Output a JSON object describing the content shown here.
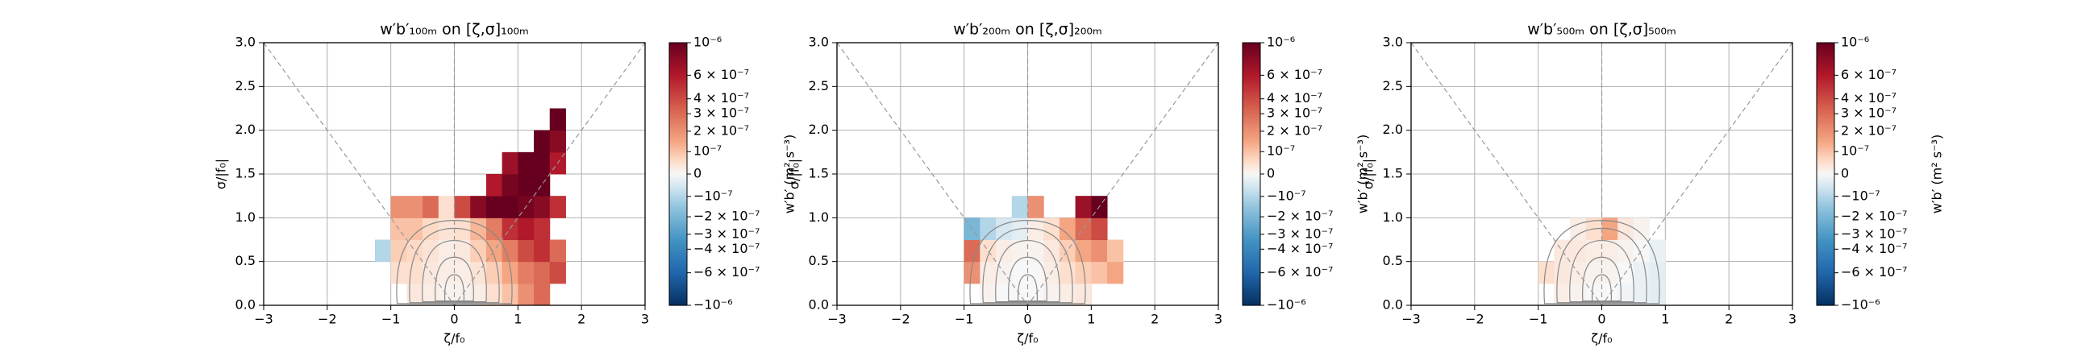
{
  "chart_data": [
    {
      "type": "heatmap",
      "title": "w′b′₁₀₀ₘ on [ζ,σ]₁₀₀ₘ",
      "xlabel": "ζ/f₀",
      "ylabel": "σ/|f₀|",
      "xlim": [
        -3,
        3
      ],
      "ylim": [
        0,
        3
      ],
      "xticks": [
        {
          "value": -3,
          "label": "−3"
        },
        {
          "value": -2,
          "label": "−2"
        },
        {
          "value": -1,
          "label": "−1"
        },
        0,
        1,
        2,
        3
      ],
      "yticks": [
        {
          "value": 0,
          "label": "0.0"
        },
        {
          "value": 0.5,
          "label": "0.5"
        },
        {
          "value": 1,
          "label": "1.0"
        },
        {
          "value": 1.5,
          "label": "1.5"
        },
        {
          "value": 2,
          "label": "2.0"
        },
        {
          "value": 2.5,
          "label": "2.5"
        },
        {
          "value": 3,
          "label": "3.0"
        }
      ],
      "grid": true,
      "x_edges": [
        -1.25,
        -1,
        -0.75,
        -0.5,
        -0.25,
        0,
        0.25,
        0.5,
        0.75,
        1,
        1.25,
        1.5,
        1.75,
        2
      ],
      "y_edges": [
        0,
        0.25,
        0.5,
        0.75,
        1,
        1.25,
        1.5,
        1.75,
        2,
        2.25
      ],
      "z": [
        [
          null,
          null,
          3e-08,
          2e-08,
          1e-08,
          1e-08,
          2e-08,
          5e-08,
          1e-07,
          2e-07,
          3e-07,
          null,
          null
        ],
        [
          null,
          5e-08,
          5e-08,
          3e-08,
          2e-08,
          2e-08,
          4e-08,
          8e-08,
          1.5e-07,
          2.5e-07,
          3e-07,
          4e-07,
          null
        ],
        [
          -1e-07,
          8e-08,
          6e-08,
          4e-08,
          2e-08,
          3e-08,
          8e-08,
          1.5e-07,
          2.5e-07,
          4e-07,
          5e-07,
          3e-07,
          null
        ],
        [
          null,
          1e-07,
          1e-07,
          6e-08,
          4e-08,
          5e-08,
          1.2e-07,
          2.5e-07,
          5e-07,
          6e-07,
          5e-07,
          null,
          null
        ],
        [
          null,
          2e-07,
          2e-07,
          3e-07,
          5e-08,
          4e-07,
          8e-07,
          1e-06,
          1e-06,
          9e-07,
          8e-07,
          5e-07,
          null
        ],
        [
          null,
          null,
          null,
          null,
          null,
          null,
          null,
          6e-07,
          9e-07,
          1e-06,
          1e-06,
          null,
          null
        ],
        [
          null,
          null,
          null,
          null,
          null,
          null,
          null,
          null,
          7e-07,
          1e-06,
          1e-06,
          6e-07,
          null
        ],
        [
          null,
          null,
          null,
          null,
          null,
          null,
          null,
          null,
          null,
          null,
          1e-06,
          8e-07,
          null
        ],
        [
          null,
          null,
          null,
          null,
          null,
          null,
          null,
          null,
          null,
          null,
          null,
          1e-06,
          null
        ]
      ],
      "colorbar": {
        "label": "w′b′ (m² s⁻³)",
        "cmap": "RdBu_r",
        "norm": "asinh",
        "lim": [
          -1e-06,
          1e-06
        ],
        "ticks": [
          {
            "value": 1e-06,
            "label": "10⁻⁶"
          },
          {
            "value": 6e-07,
            "label": "6 × 10⁻⁷"
          },
          {
            "value": 4e-07,
            "label": "4 × 10⁻⁷"
          },
          {
            "value": 3e-07,
            "label": "3 × 10⁻⁷"
          },
          {
            "value": 2e-07,
            "label": "2 × 10⁻⁷"
          },
          {
            "value": 1e-07,
            "label": "10⁻⁷"
          },
          0,
          {
            "value": -1e-07,
            "label": "−10⁻⁷"
          },
          {
            "value": -2e-07,
            "label": "−2 × 10⁻⁷"
          },
          {
            "value": -3e-07,
            "label": "−3 × 10⁻⁷"
          },
          {
            "value": -4e-07,
            "label": "−4 × 10⁻⁷"
          },
          {
            "value": -6e-07,
            "label": "−6 × 10⁻⁷"
          },
          {
            "value": -1e-06,
            "label": "−10⁻⁶"
          }
        ]
      }
    },
    {
      "type": "heatmap",
      "title": "w′b′₂₀₀ₘ on [ζ,σ]₂₀₀ₘ",
      "xlabel": "ζ/f₀",
      "ylabel": "σ/|f₀|",
      "xlim": [
        -3,
        3
      ],
      "ylim": [
        0,
        3
      ],
      "xticks": [
        {
          "value": -3,
          "label": "−3"
        },
        {
          "value": -2,
          "label": "−2"
        },
        {
          "value": -1,
          "label": "−1"
        },
        0,
        1,
        2,
        3
      ],
      "yticks": [
        {
          "value": 0,
          "label": "0.0"
        },
        {
          "value": 0.5,
          "label": "0.5"
        },
        {
          "value": 1,
          "label": "1.0"
        },
        {
          "value": 1.5,
          "label": "1.5"
        },
        {
          "value": 2,
          "label": "2.0"
        },
        {
          "value": 2.5,
          "label": "2.5"
        },
        {
          "value": 3,
          "label": "3.0"
        }
      ],
      "grid": true,
      "x_edges": [
        -1.25,
        -1,
        -0.75,
        -0.5,
        -0.25,
        0,
        0.25,
        0.5,
        0.75,
        1,
        1.25,
        1.5,
        1.75,
        2
      ],
      "y_edges": [
        0,
        0.25,
        0.5,
        0.75,
        1,
        1.25,
        1.5,
        1.75,
        2,
        2.25
      ],
      "z": [
        [
          null,
          null,
          1e-08,
          0,
          0,
          0,
          1e-08,
          2e-08,
          3e-08,
          null,
          null,
          null,
          null
        ],
        [
          null,
          2e-07,
          2e-08,
          1e-08,
          0,
          0,
          2e-08,
          5e-08,
          8e-08,
          1e-07,
          1.5e-07,
          null,
          null
        ],
        [
          null,
          3e-07,
          5e-08,
          2e-08,
          1e-08,
          1e-08,
          3e-08,
          8e-08,
          1.5e-07,
          2e-07,
          1e-07,
          null,
          null
        ],
        [
          null,
          -2e-07,
          -1e-07,
          -5e-08,
          -3e-08,
          2e-08,
          5e-08,
          1.5e-07,
          3e-07,
          4e-07,
          null,
          null,
          null
        ],
        [
          null,
          null,
          null,
          null,
          -1e-07,
          2e-07,
          null,
          null,
          7e-07,
          1e-06,
          null,
          null,
          null
        ],
        [
          null,
          null,
          null,
          null,
          null,
          null,
          null,
          null,
          null,
          null,
          null,
          null,
          null
        ],
        [
          null,
          null,
          null,
          null,
          null,
          null,
          null,
          null,
          null,
          null,
          null,
          null,
          null
        ],
        [
          null,
          null,
          null,
          null,
          null,
          null,
          null,
          null,
          null,
          null,
          null,
          null,
          null
        ],
        [
          null,
          null,
          null,
          null,
          null,
          null,
          null,
          null,
          null,
          null,
          null,
          null,
          null
        ]
      ],
      "colorbar": {
        "label": "w′b′ (m² s⁻³)",
        "cmap": "RdBu_r",
        "norm": "asinh",
        "lim": [
          -1e-06,
          1e-06
        ],
        "ticks": [
          {
            "value": 1e-06,
            "label": "10⁻⁶"
          },
          {
            "value": 6e-07,
            "label": "6 × 10⁻⁷"
          },
          {
            "value": 4e-07,
            "label": "4 × 10⁻⁷"
          },
          {
            "value": 3e-07,
            "label": "3 × 10⁻⁷"
          },
          {
            "value": 2e-07,
            "label": "2 × 10⁻⁷"
          },
          {
            "value": 1e-07,
            "label": "10⁻⁷"
          },
          0,
          {
            "value": -1e-07,
            "label": "−10⁻⁷"
          },
          {
            "value": -2e-07,
            "label": "−2 × 10⁻⁷"
          },
          {
            "value": -3e-07,
            "label": "−3 × 10⁻⁷"
          },
          {
            "value": -4e-07,
            "label": "−4 × 10⁻⁷"
          },
          {
            "value": -6e-07,
            "label": "−6 × 10⁻⁷"
          },
          {
            "value": -1e-06,
            "label": "−10⁻⁶"
          }
        ]
      }
    },
    {
      "type": "heatmap",
      "title": "w′b′₅₀₀ₘ on [ζ,σ]₅₀₀ₘ",
      "xlabel": "ζ/f₀",
      "ylabel": "σ/|f₀|",
      "xlim": [
        -3,
        3
      ],
      "ylim": [
        0,
        3
      ],
      "xticks": [
        {
          "value": -3,
          "label": "−3"
        },
        {
          "value": -2,
          "label": "−2"
        },
        {
          "value": -1,
          "label": "−1"
        },
        0,
        1,
        2,
        3
      ],
      "yticks": [
        {
          "value": 0,
          "label": "0.0"
        },
        {
          "value": 0.5,
          "label": "0.5"
        },
        {
          "value": 1,
          "label": "1.0"
        },
        {
          "value": 1.5,
          "label": "1.5"
        },
        {
          "value": 2,
          "label": "2.0"
        },
        {
          "value": 2.5,
          "label": "2.5"
        },
        {
          "value": 3,
          "label": "3.0"
        }
      ],
      "grid": true,
      "x_edges": [
        -1.25,
        -1,
        -0.75,
        -0.5,
        -0.25,
        0,
        0.25,
        0.5,
        0.75,
        1,
        1.25,
        1.5,
        1.75,
        2
      ],
      "y_edges": [
        0,
        0.25,
        0.5,
        0.75,
        1,
        1.25,
        1.5,
        1.75,
        2,
        2.25
      ],
      "z": [
        [
          null,
          null,
          2e-08,
          1e-08,
          0,
          0,
          -1e-08,
          -2e-08,
          -3e-08,
          null,
          null,
          null,
          null
        ],
        [
          null,
          5e-08,
          3e-08,
          2e-08,
          1e-08,
          1e-08,
          0,
          -2e-08,
          -3e-08,
          null,
          null,
          null,
          null
        ],
        [
          null,
          null,
          3e-08,
          3e-08,
          2e-08,
          2e-08,
          1e-08,
          0,
          -2e-08,
          null,
          null,
          null,
          null
        ],
        [
          null,
          null,
          null,
          2e-08,
          5e-08,
          1.5e-07,
          3e-08,
          1e-08,
          null,
          null,
          null,
          null,
          null
        ],
        [
          null,
          null,
          null,
          null,
          null,
          null,
          null,
          null,
          null,
          null,
          null,
          null,
          null
        ],
        [
          null,
          null,
          null,
          null,
          null,
          null,
          null,
          null,
          null,
          null,
          null,
          null,
          null
        ],
        [
          null,
          null,
          null,
          null,
          null,
          null,
          null,
          null,
          null,
          null,
          null,
          null,
          null
        ],
        [
          null,
          null,
          null,
          null,
          null,
          null,
          null,
          null,
          null,
          null,
          null,
          null,
          null
        ],
        [
          null,
          null,
          null,
          null,
          null,
          null,
          null,
          null,
          null,
          null,
          null,
          null,
          null
        ]
      ],
      "colorbar": {
        "label": "w′b′ (m² s⁻³)",
        "cmap": "RdBu_r",
        "norm": "asinh",
        "lim": [
          -1e-06,
          1e-06
        ],
        "ticks": [
          {
            "value": 1e-06,
            "label": "10⁻⁶"
          },
          {
            "value": 6e-07,
            "label": "6 × 10⁻⁷"
          },
          {
            "value": 4e-07,
            "label": "4 × 10⁻⁷"
          },
          {
            "value": 3e-07,
            "label": "3 × 10⁻⁷"
          },
          {
            "value": 2e-07,
            "label": "2 × 10⁻⁷"
          },
          {
            "value": 1e-07,
            "label": "10⁻⁷"
          },
          0,
          {
            "value": -1e-07,
            "label": "−10⁻⁷"
          },
          {
            "value": -2e-07,
            "label": "−2 × 10⁻⁷"
          },
          {
            "value": -3e-07,
            "label": "−3 × 10⁻⁷"
          },
          {
            "value": -4e-07,
            "label": "−4 × 10⁻⁷"
          },
          {
            "value": -6e-07,
            "label": "−6 × 10⁻⁷"
          },
          {
            "value": -1e-06,
            "label": "−10⁻⁶"
          }
        ]
      }
    }
  ]
}
